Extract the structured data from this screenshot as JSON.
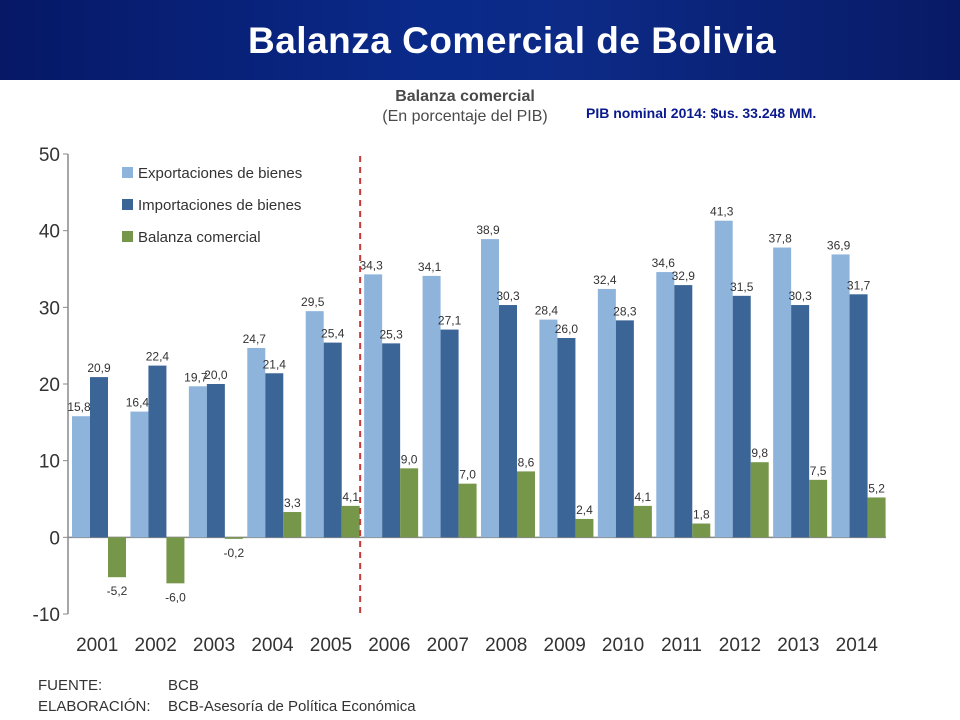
{
  "header": {
    "title": "Balanza Comercial de Bolivia"
  },
  "chart_data": {
    "type": "bar",
    "title": "Balanza comercial",
    "subtitle": "(En porcentaje del PIB)",
    "note": "PIB nominal 2014: $us. 33.248 MM.",
    "categories": [
      "2001",
      "2002",
      "2003",
      "2004",
      "2005",
      "2006",
      "2007",
      "2008",
      "2009",
      "2010",
      "2011",
      "2012",
      "2013",
      "2014"
    ],
    "series": [
      {
        "name": "Exportaciones de bienes",
        "color": "#8eb4dc",
        "values": [
          15.8,
          16.4,
          19.7,
          24.7,
          29.5,
          34.3,
          34.1,
          38.9,
          28.4,
          32.4,
          34.6,
          41.3,
          37.8,
          36.9
        ],
        "labels": [
          "15,8",
          "16,4",
          "19,7",
          "24,7",
          "29,5",
          "34,3",
          "34,1",
          "38,9",
          "28,4",
          "32,4",
          "34,6",
          "41,3",
          "37,8",
          "36,9"
        ]
      },
      {
        "name": "Importaciones de bienes",
        "color": "#3a6596",
        "values": [
          20.9,
          22.4,
          20.0,
          21.4,
          25.4,
          25.3,
          27.1,
          30.3,
          26.0,
          28.3,
          32.9,
          31.5,
          30.3,
          31.7
        ],
        "labels": [
          "20,9",
          "22,4",
          "20,0",
          "21,4",
          "25,4",
          "25,3",
          "27,1",
          "30,3",
          "26,0",
          "28,3",
          "32,9",
          "31,5",
          "30,3",
          "31,7"
        ]
      },
      {
        "name": "Balanza comercial",
        "color": "#76964a",
        "values": [
          -5.2,
          -6.0,
          -0.2,
          3.3,
          4.1,
          9.0,
          7.0,
          8.6,
          2.4,
          4.1,
          1.8,
          9.8,
          7.5,
          5.2
        ],
        "labels": [
          "-5,2",
          "-6,0",
          "-0,2",
          "3,3",
          "4,1",
          "9,0",
          "7,0",
          "8,6",
          "2,4",
          "4,1",
          "1,8",
          "9,8",
          "7,5",
          "5,2"
        ]
      }
    ],
    "yticks": [
      "50",
      "40",
      "30",
      "20",
      "10",
      "0",
      "-10"
    ],
    "ylim": [
      -10,
      50
    ],
    "xlabel": "",
    "ylabel": "",
    "legend_position": "top-left",
    "divider_after": "2005",
    "grid": false
  },
  "footer": {
    "source_key": "FUENTE:",
    "source_value": "BCB",
    "prepared_key": "ELABORACIÓN:",
    "prepared_value": "BCB-Asesoría de Política Económica"
  }
}
